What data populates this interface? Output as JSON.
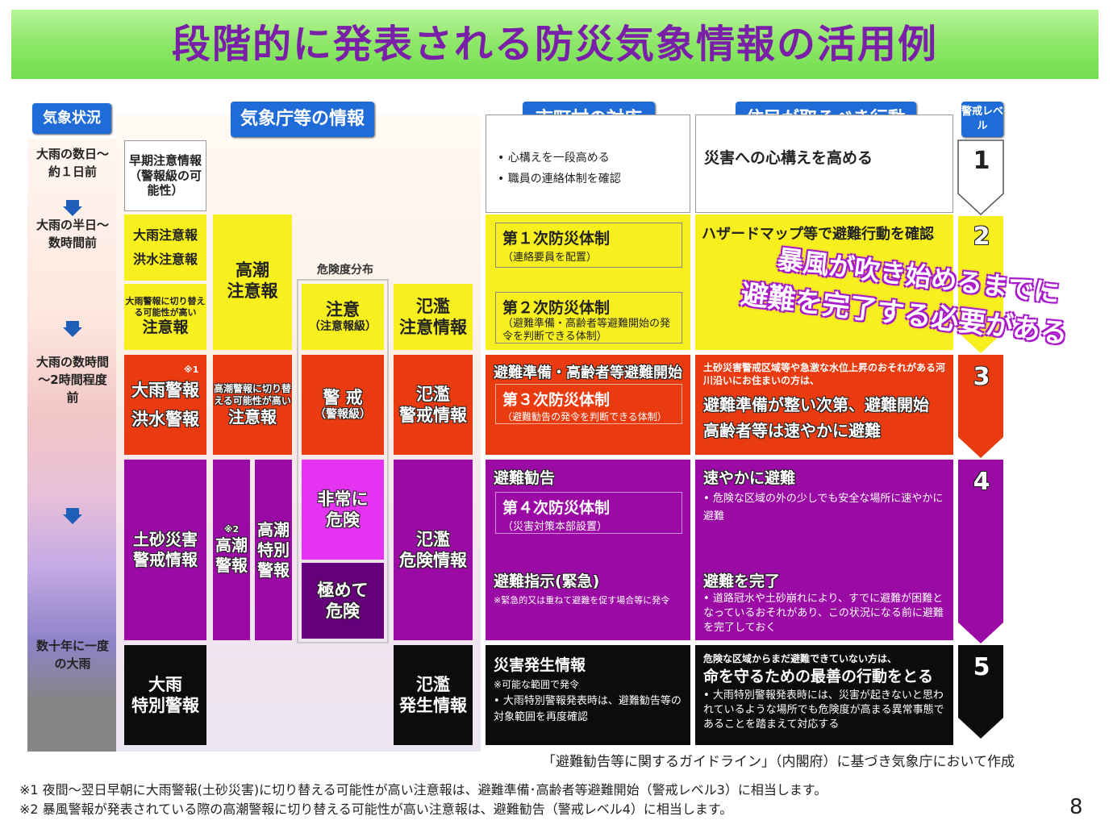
{
  "title": "段階的に発表される防災気象情報の活用例",
  "headers": {
    "weather": "気象状況",
    "jma": "気象庁等の情報",
    "city": "市町村の対応",
    "resident": "住民が取るべき行動",
    "level": "警戒レベル"
  },
  "timeline": {
    "t1": "大雨の数日～約１日前",
    "t2": "大雨の半日～数時間前",
    "t3": "大雨の数時間～2時間程度前",
    "t4": "数十年に一度の大雨"
  },
  "jma": {
    "early": "早期注意情報（警報級の可能性）",
    "heavy_advisory": "大雨注意報",
    "flood_advisory": "洪水注意報",
    "heavy_switch": "大雨警報に切り替える可能性が高い",
    "heavy_switch_b": "注意報",
    "storm_advisory_a": "高潮",
    "storm_advisory_b": "注意報",
    "risk_dist": "危険度分布",
    "chui": "注意",
    "chui_sub": "（注意報級）",
    "river_adv_a": "氾濫",
    "river_adv_b": "注意情報",
    "note1": "※1",
    "heavy_warning": "大雨警報",
    "flood_warning": "洪水警報",
    "storm_switch": "高潮警報に切り替える可能性が高い",
    "storm_switch_b": "注意報",
    "keikai": "警 戒",
    "keikai_sub": "（警報級）",
    "river_warn_a": "氾濫",
    "river_warn_b": "警戒情報",
    "dosha_a": "土砂災害",
    "dosha_b": "警戒情報",
    "note2": "※2",
    "storm_warning_a": "高潮",
    "storm_warning_b": "警報",
    "storm_special_a": "高潮",
    "storm_special_b": "特別",
    "storm_special_c": "警報",
    "hijou_a": "非常に",
    "hijou_b": "危険",
    "kiwamete_a": "極めて",
    "kiwamete_b": "危険",
    "river_danger_a": "氾濫",
    "river_danger_b": "危険情報",
    "special_a": "大雨",
    "special_b": "特別警報",
    "river_occur_a": "氾濫",
    "river_occur_b": "発生情報"
  },
  "city": {
    "l1_b1": "心構えを一段高める",
    "l1_b2": "職員の連絡体制を確認",
    "l2_h1": "第１次防災体制",
    "l2_s1": "（連絡要員を配置）",
    "l2_h2": "第２次防災体制",
    "l2_s2": "（避難準備・高齢者等避難開始の発令を判断できる体制）",
    "l3_top": "避難準備・高齢者等避難開始",
    "l3_h": "第３次防災体制",
    "l3_s": "（避難勧告の発令を判断できる体制）",
    "l4_top": "避難勧告",
    "l4_h": "第４次防災体制",
    "l4_s": "（災害対策本部設置）",
    "l4_top2": "避難指示(緊急)",
    "l4_s2": "※緊急的又は重ねて避難を促す場合等に発令",
    "l5_top": "災害発生情報",
    "l5_s1": "※可能な範囲で発令",
    "l5_s2": "大雨特別警報発表時は、避難勧告等の対象範囲を再度確認"
  },
  "resident": {
    "l1": "災害への心構えを高める",
    "l2": "ハザードマップ等で避難行動を確認",
    "l3_small": "土砂災害警戒区域等や急激な水位上昇のおそれがある河川沿いにお住まいの方は、",
    "l3_a": "避難準備が整い次第、避難開始",
    "l3_b": "高齢者等は速やかに避難",
    "l4_h": "速やかに避難",
    "l4_s": "危険な区域の外の少しでも安全な場所に速やかに避難",
    "l4_h2": "避難を完了",
    "l4_s2": "道路冠水や土砂崩れにより、すでに避難が困難となっているおそれがあり、この状況になる前に避難を完了しておく",
    "l5_small": "危険な区域からまだ避難できていない方は、",
    "l5_h": "命を守るための最善の行動をとる",
    "l5_s": "大雨特別警報発表時には、災害が起きないと思われているような場所でも危険度が高まる異常事態であることを踏まえて対応する"
  },
  "callout": {
    "line1": "暴風が吹き始めるまでに",
    "line2": "避難を完了する必要がある"
  },
  "levels": [
    "1",
    "2",
    "3",
    "4",
    "5"
  ],
  "source": "「避難勧告等に関するガイドライン」（内閣府）に基づき気象庁において作成",
  "footnote1": "※1 夜間～翌日早朝に大雨警報(土砂災害)に切り替える可能性が高い注意報は、避難準備･高齢者等避難開始（警戒レベル3）に相当します。",
  "footnote2": "※2 暴風警報が発表されている際の高潮警報に切り替える可能性が高い注意報は、避難勧告（警戒レベル4）に相当します。",
  "page_number": "8",
  "colors": {
    "title_text": "#7a1fa8",
    "header_blue": "#1f6cd8",
    "yellow": "#f7ef1e",
    "red": "#ea3b10",
    "purple": "#9c0aa6",
    "black": "#0c0c0c"
  }
}
